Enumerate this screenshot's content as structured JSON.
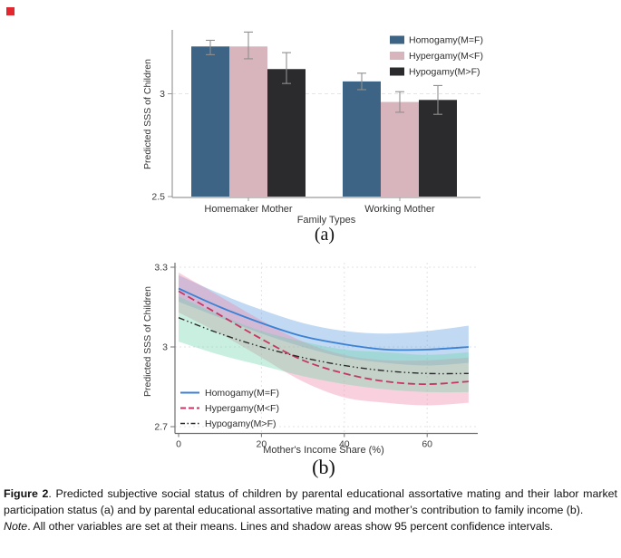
{
  "page": {
    "red_mark_color": "#e0282e"
  },
  "figure": {
    "panel_a": {
      "label": "(a)"
    },
    "panel_b": {
      "label": "(b)"
    }
  },
  "chart_data": [
    {
      "type": "bar",
      "panel": "a",
      "title": "",
      "ylabel": "Predicted SSS of Children",
      "xlabel": "Family Types",
      "categories": [
        "Homemaker Mother",
        "Working Mother"
      ],
      "yticks": [
        2.5,
        3
      ],
      "ylim": [
        2.5,
        3.32
      ],
      "gridlines_y": [
        3
      ],
      "grid": "dashed-horizontal",
      "legend_position": "top-right",
      "series": [
        {
          "name": "Homogamy(M=F)",
          "color": "#3d6484",
          "values": [
            3.23,
            3.06
          ],
          "ci_low": [
            3.19,
            3.02
          ],
          "ci_high": [
            3.26,
            3.1
          ]
        },
        {
          "name": "Hypergamy(M<F)",
          "color": "#d8b4bc",
          "values": [
            3.23,
            2.96
          ],
          "ci_low": [
            3.17,
            2.91
          ],
          "ci_high": [
            3.3,
            3.01
          ]
        },
        {
          "name": "Hypogamy(M>F)",
          "color": "#2b2b2e",
          "values": [
            3.12,
            2.97
          ],
          "ci_low": [
            3.05,
            2.9
          ],
          "ci_high": [
            3.2,
            3.04
          ]
        }
      ]
    },
    {
      "type": "line",
      "panel": "b",
      "title": "",
      "ylabel": "Predicted SSS of Children",
      "xlabel": "Mother's Income Share (%)",
      "x": [
        0,
        10,
        20,
        30,
        40,
        50,
        60,
        70
      ],
      "xticks": [
        0,
        20,
        40,
        60
      ],
      "yticks": [
        2.7,
        3,
        3.3
      ],
      "xlim": [
        0,
        70
      ],
      "ylim": [
        2.68,
        3.33
      ],
      "grid": "dotted-both",
      "legend_position": "bottom-left",
      "bands": "95 percent confidence intervals",
      "series": [
        {
          "name": "Homogamy(M=F)",
          "color": "#3b82d4",
          "line_style": "solid",
          "band_color": "#5b9ae0",
          "values": [
            3.22,
            3.15,
            3.09,
            3.04,
            3.01,
            2.99,
            2.99,
            3.0
          ],
          "ci_low": [
            3.17,
            3.11,
            3.05,
            3.0,
            2.96,
            2.94,
            2.93,
            2.94
          ],
          "ci_high": [
            3.27,
            3.2,
            3.14,
            3.09,
            3.06,
            3.05,
            3.06,
            3.08
          ]
        },
        {
          "name": "Hypergamy(M<F)",
          "color": "#c73663",
          "line_style": "dashed",
          "band_color": "#ee85a8",
          "values": [
            3.21,
            3.12,
            3.03,
            2.95,
            2.9,
            2.87,
            2.86,
            2.87
          ],
          "ci_low": [
            3.13,
            3.05,
            2.96,
            2.87,
            2.81,
            2.79,
            2.78,
            2.79
          ],
          "ci_high": [
            3.28,
            3.19,
            3.1,
            3.02,
            2.97,
            2.95,
            2.95,
            2.96
          ]
        },
        {
          "name": "Hypogamy(M>F)",
          "color": "#2b2b2b",
          "line_style": "dash-dot-dot",
          "band_color": "#6fd4ac",
          "values": [
            3.11,
            3.05,
            3.0,
            2.96,
            2.93,
            2.91,
            2.9,
            2.9
          ],
          "ci_low": [
            3.02,
            2.97,
            2.93,
            2.89,
            2.86,
            2.84,
            2.83,
            2.83
          ],
          "ci_high": [
            3.19,
            3.12,
            3.06,
            3.02,
            2.99,
            2.98,
            2.97,
            2.98
          ]
        }
      ]
    }
  ],
  "caption": {
    "figure_label": "Figure 2",
    "figure_text": ". Predicted subjective social status of children by parental educational assortative mating and their labor market participation status (a) and by parental educational assortative mating and mother’s contribution to family income (b).",
    "note_label": "Note",
    "note_text": ". All other variables are set at their means. Lines and shadow areas show 95 percent confidence intervals."
  }
}
